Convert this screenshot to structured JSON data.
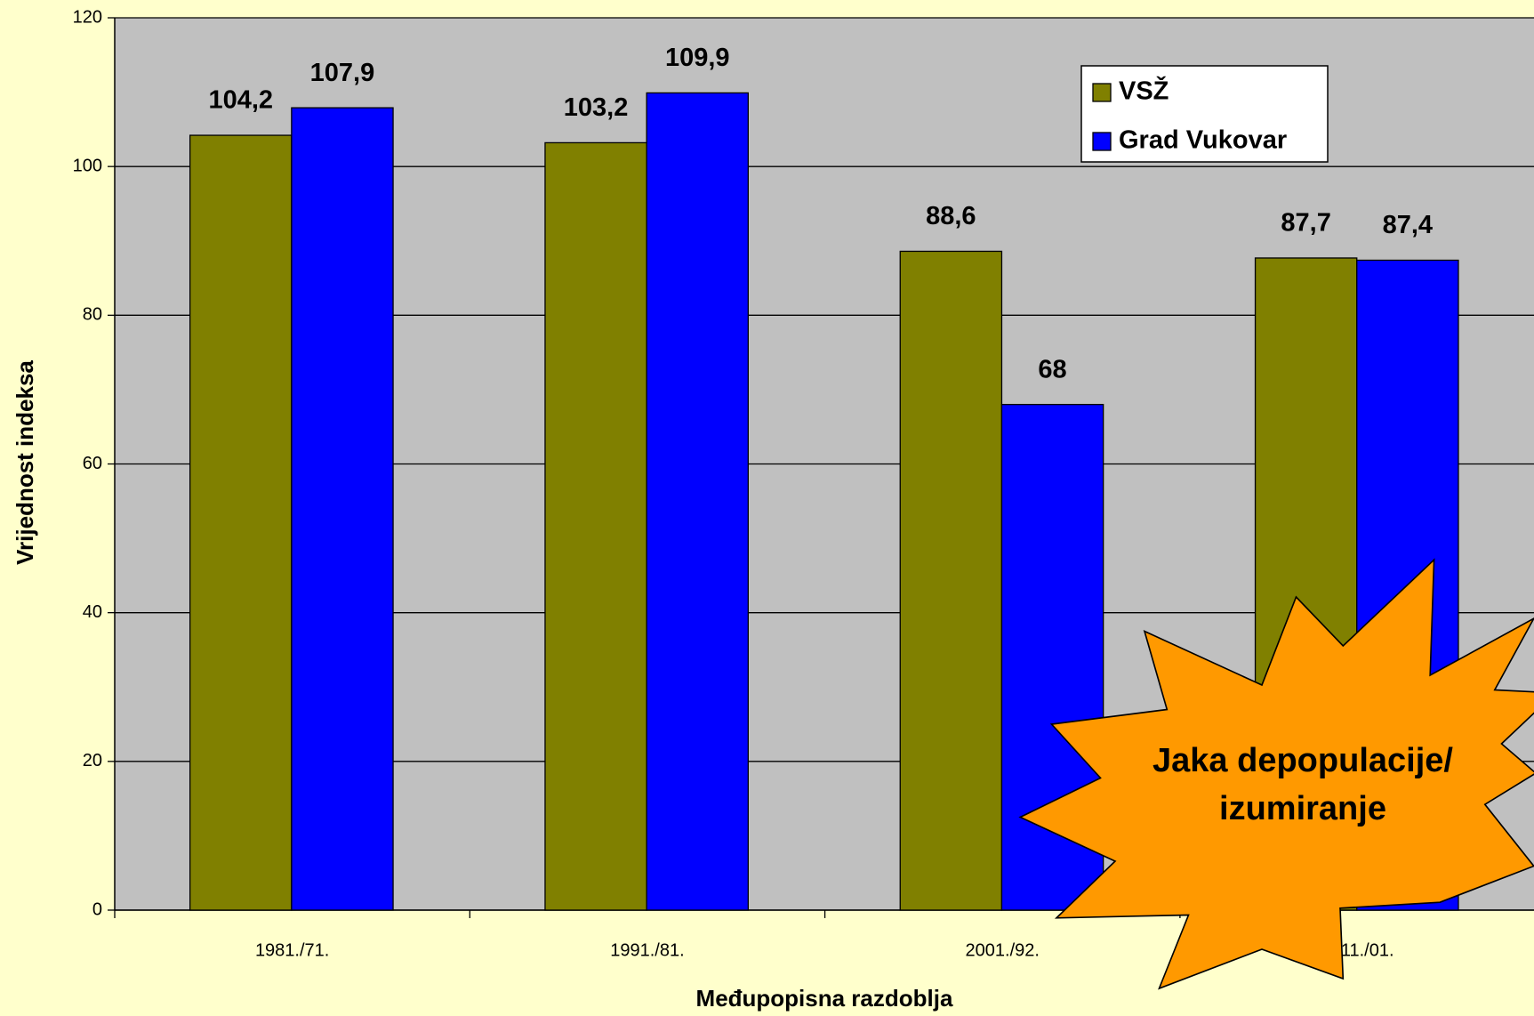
{
  "chart_data": {
    "type": "bar",
    "categories": [
      "1981./71.",
      "1991./81.",
      "2001./92.",
      "1011./01."
    ],
    "series": [
      {
        "name": "VSŽ",
        "color": "#808000",
        "values": [
          104.2,
          103.2,
          88.6,
          87.7
        ],
        "value_labels": [
          "104,2",
          "103,2",
          "88,6",
          "87,7"
        ]
      },
      {
        "name": "Grad Vukovar",
        "color": "#0000ff",
        "values": [
          107.9,
          109.9,
          68,
          87.4
        ],
        "value_labels": [
          "107,9",
          "109,9",
          "68",
          "87,4"
        ]
      }
    ],
    "ylim": [
      0,
      120
    ],
    "yticks": [
      0,
      20,
      40,
      60,
      80,
      100,
      120
    ],
    "grid": true,
    "ylabel": "Vrijednost indeksa",
    "xlabel": "Međupopisna razdoblja",
    "legend": "upper right",
    "annotation": [
      "Jaka depopulacije/",
      "izumiranje"
    ]
  }
}
